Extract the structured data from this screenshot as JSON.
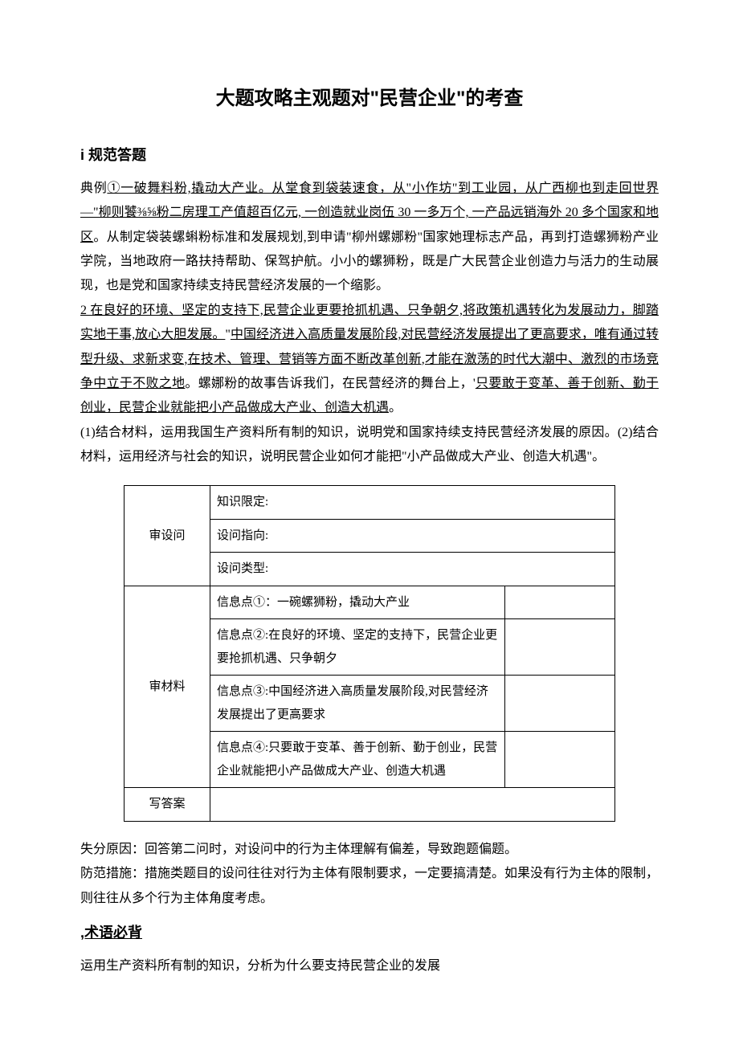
{
  "title": "大题攻略主观题对\"民营企业\"的考查",
  "section1": {
    "heading": "i 规范答题",
    "para1_prefix": "典例",
    "para1_u1": "①一破舞料粉,撬动大产业。从堂食到袋装速食，从\"小作坊\"到工业园，从广西柳也到走回世界—\"柳则饕⅜⅝粉二房理工产值超百亿元, 一创造就业岗伍 30 一多万个, 一产品远销海外 20 多个国家和地区",
    "para1_rest": "。从制定袋装螺蝌粉标准和发展规划,到申请\"柳州螺娜粉\"国家她理标志产品，再到打造螺狮粉产业学院，当地政府一路扶持帮助、保驾护航。小小的螺狮粉，既是广大民营企业创造力与活力的生动展现，也是党和国家持续支持民营经济发展的一个缩影。",
    "para2_u1": "2 在良好的环境、坚定的支持下,民营企业更要抢抓机遇、只争朝夕,将政策机遇转化为发展动力，脚踏实地干事,放心大胆发展。",
    "para2_mid1": "\"",
    "para2_u2": "中国经济进入高质量发展阶段,对民营经济发展提出了更高要求，唯有通过转型升级、求新求变,在技术、管理、营销等方面不断改革创新,才能在激荡的时代大潮中、激烈的市场竞争中立于不败之地",
    "para2_mid2": "。螺娜粉的故事告诉我们，在民营经济的舞台上，'",
    "para2_u3": "只要敢于变革、善于创新、勤于创业，民营企业就能把小产品做成大产业、创造大机遇",
    "para2_end": "。",
    "q1": "(1)结合材料，运用我国生产资料所有制的知识，说明党和国家持续支持民营经济发展的原因。(2)结合材料，运用经济与社会的知识，说明民营企业如何才能把\"小产品做成大产业、创造大机遇\"。"
  },
  "table": {
    "r1": "审设问",
    "r1a": "知识限定:",
    "r1b": "设问指向:",
    "r1c": "设问类型:",
    "r2": "审材料",
    "r2a": "信息点①：一碗螺狮粉，撬动大产业",
    "r2b": "信息点②:在良好的环境、坚定的支持下，民营企业更要抢抓机遇、只争朝夕",
    "r2c": "信息点③:中国经济进入高质量发展阶段,对民营经济发展提出了更高要求",
    "r2d": "信息点④:只要敢于变革、善于创新、勤于创业，民营企业就能把小产品做成大产业、创造大机遇",
    "r3": "写答案"
  },
  "after": {
    "p1": "失分原因：回答第二问时，对设问中的行为主体理解有偏差，导致跑题偏题。",
    "p2": "防范措施：措施类题目的设问往往对行为主体有限制要求，一定要搞清楚。如果没有行为主体的限制，则往往从多个行为主体角度考虑。"
  },
  "section2": {
    "heading": ",术语必背",
    "p1": "运用生产资料所有制的知识，分析为什么要支持民营企业的发展"
  }
}
